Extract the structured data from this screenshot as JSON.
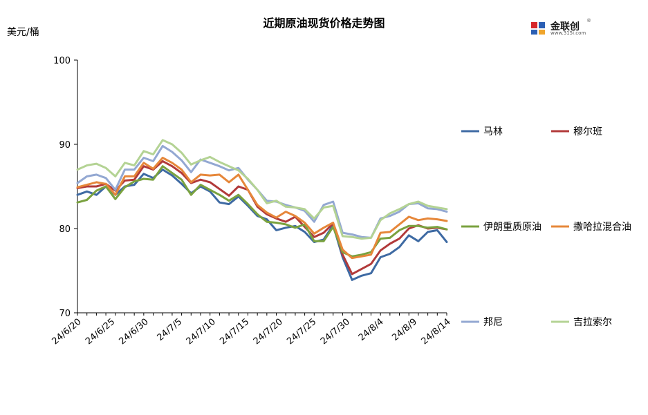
{
  "header": {
    "title": "近期原油现货价格走势图",
    "unit": "美元/桶"
  },
  "logo": {
    "brand": "金联创",
    "sub": "www.315i.com",
    "reg": "®"
  },
  "colors": {
    "马林": "#3e6aa3",
    "穆尔班": "#b23a3a",
    "伊朗重质原油": "#7aa23f",
    "撒哈拉混合油": "#e6873a",
    "邦尼": "#93a8d2",
    "吉拉索尔": "#b4d394"
  },
  "chart_data": {
    "type": "line",
    "title": "近期原油现货价格走势图",
    "ylabel": "美元/桶",
    "xlabel": "",
    "ylim": [
      70,
      100
    ],
    "yticks": [
      70,
      80,
      90,
      100
    ],
    "grid": false,
    "legend_position": "right",
    "x": [
      "24/6/20",
      "24/6/21",
      "24/6/24",
      "24/6/25",
      "24/6/26",
      "24/6/27",
      "24/6/28",
      "24/7/1",
      "24/7/2",
      "24/7/3",
      "24/7/4",
      "24/7/5",
      "24/7/8",
      "24/7/9",
      "24/7/10",
      "24/7/11",
      "24/7/12",
      "24/7/15",
      "24/7/16",
      "24/7/17",
      "24/7/18",
      "24/7/19",
      "24/7/22",
      "24/7/23",
      "24/7/24",
      "24/7/25",
      "24/7/26",
      "24/7/29",
      "24/7/30",
      "24/7/31",
      "24/8/1",
      "24/8/2",
      "24/8/5",
      "24/8/6",
      "24/8/7",
      "24/8/8",
      "24/8/9",
      "24/8/12",
      "24/8/13",
      "24/8/14"
    ],
    "xticks": [
      "24/6/20",
      "24/6/25",
      "24/6/30",
      "24/7/5",
      "24/7/10",
      "24/7/15",
      "24/7/20",
      "24/7/25",
      "24/7/30",
      "24/8/4",
      "24/8/9",
      "24/8/14"
    ],
    "series": [
      {
        "name": "马林",
        "values": [
          84.0,
          84.4,
          84.0,
          85.0,
          84.0,
          85.0,
          85.2,
          86.5,
          86.0,
          87.0,
          86.3,
          85.3,
          84.2,
          85.0,
          84.4,
          83.1,
          82.9,
          83.8,
          82.7,
          81.5,
          81.1,
          79.8,
          80.1,
          80.3,
          79.6,
          78.4,
          78.7,
          80.4,
          76.6,
          73.9,
          74.4,
          74.7,
          76.6,
          77.0,
          77.8,
          79.2,
          78.5,
          79.6,
          79.8,
          78.4
        ]
      },
      {
        "name": "穆尔班",
        "values": [
          84.8,
          85.0,
          85.0,
          85.3,
          84.5,
          85.7,
          85.8,
          87.4,
          87.0,
          88.0,
          87.4,
          86.6,
          85.4,
          85.8,
          85.5,
          84.7,
          83.9,
          85.0,
          84.6,
          82.6,
          81.7,
          81.2,
          80.8,
          81.4,
          80.2,
          79.0,
          79.5,
          80.6,
          76.9,
          74.6,
          75.2,
          75.8,
          77.4,
          78.2,
          78.8,
          80.0,
          80.4,
          80.0,
          80.1,
          79.9
        ]
      },
      {
        "name": "伊朗重质原油",
        "values": [
          83.1,
          83.4,
          84.5,
          85.0,
          83.5,
          84.9,
          85.6,
          85.9,
          85.8,
          87.4,
          86.6,
          85.8,
          84.0,
          85.2,
          84.6,
          84.0,
          83.3,
          84.0,
          82.9,
          81.7,
          80.8,
          80.7,
          80.5,
          80.1,
          80.5,
          78.5,
          78.5,
          80.2,
          77.2,
          76.7,
          76.9,
          77.2,
          78.8,
          78.9,
          79.8,
          80.3,
          80.3,
          80.1,
          80.2,
          79.9
        ]
      },
      {
        "name": "撒哈拉混合油",
        "values": [
          84.9,
          85.2,
          85.5,
          85.3,
          84.0,
          86.2,
          86.2,
          87.8,
          87.1,
          88.4,
          87.8,
          87.0,
          85.5,
          86.4,
          86.3,
          86.4,
          85.5,
          86.4,
          84.6,
          82.8,
          81.9,
          81.3,
          82.0,
          81.5,
          80.7,
          79.4,
          80.1,
          80.7,
          77.5,
          76.5,
          76.7,
          76.9,
          79.5,
          79.6,
          80.5,
          81.4,
          81.0,
          81.2,
          81.1,
          80.9
        ]
      },
      {
        "name": "邦尼",
        "values": [
          85.4,
          86.2,
          86.4,
          86.0,
          84.6,
          87.0,
          87.0,
          88.4,
          88.0,
          89.8,
          89.1,
          88.1,
          86.7,
          88.2,
          87.8,
          87.4,
          86.9,
          87.2,
          85.8,
          84.6,
          83.3,
          83.2,
          82.8,
          82.5,
          82.1,
          80.8,
          82.8,
          83.2,
          79.5,
          79.3,
          79.0,
          78.9,
          81.2,
          81.5,
          82.0,
          82.9,
          83.0,
          82.4,
          82.3,
          82.0
        ]
      },
      {
        "name": "吉拉索尔",
        "values": [
          87.0,
          87.5,
          87.7,
          87.2,
          86.2,
          87.8,
          87.5,
          89.2,
          88.8,
          90.5,
          90.0,
          89.0,
          87.6,
          88.1,
          88.5,
          87.9,
          87.4,
          86.9,
          85.9,
          84.6,
          83.0,
          83.3,
          82.6,
          82.5,
          82.3,
          81.2,
          82.5,
          82.7,
          79.1,
          79.0,
          78.8,
          78.9,
          81.0,
          81.8,
          82.3,
          82.9,
          83.2,
          82.7,
          82.5,
          82.3
        ]
      }
    ]
  }
}
